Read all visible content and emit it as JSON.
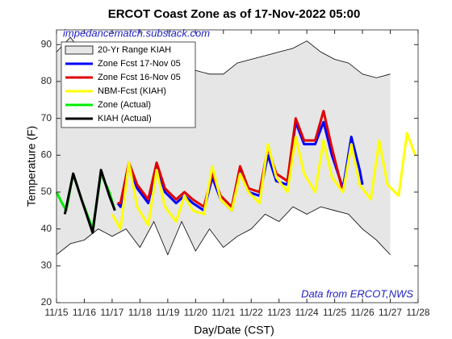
{
  "chart_data": {
    "type": "line",
    "title": "ERCOT Coast Zone as of 17-Nov-2022 05:00",
    "x_label": "Day/Date (CST)",
    "y_label": "Temperature (F)",
    "annotations": [
      "impedancematch.substack.com",
      "Data from ERCOT,NWS"
    ],
    "xlim": [
      15,
      28
    ],
    "ylim": [
      20,
      94
    ],
    "xticks": [
      {
        "value": 15,
        "label": "11/15"
      },
      {
        "value": 16,
        "label": "11/16"
      },
      {
        "value": 17,
        "label": "11/17"
      },
      {
        "value": 18,
        "label": "11/18"
      },
      {
        "value": 19,
        "label": "11/19"
      },
      {
        "value": 20,
        "label": "11/20"
      },
      {
        "value": 21,
        "label": "11/21"
      },
      {
        "value": 22,
        "label": "11/22"
      },
      {
        "value": 23,
        "label": "11/23"
      },
      {
        "value": 24,
        "label": "11/24"
      },
      {
        "value": 25,
        "label": "11/25"
      },
      {
        "value": 26,
        "label": "11/26"
      },
      {
        "value": 27,
        "label": "11/27"
      },
      {
        "value": 28,
        "label": "11/28"
      }
    ],
    "yticks": [
      20,
      30,
      40,
      50,
      60,
      70,
      80,
      90
    ],
    "grid": false,
    "legend": "top-left",
    "band": {
      "name": "20-Yr Range KIAH",
      "color": "#e6e6e6",
      "x": [
        15,
        15.5,
        16,
        16.5,
        17,
        17.5,
        18,
        18.5,
        19,
        19.5,
        20,
        20.5,
        21,
        21.5,
        22,
        22.5,
        23,
        23.5,
        24,
        24.5,
        25,
        25.5,
        26,
        26.5,
        27
      ],
      "upper": [
        88,
        92,
        87,
        86,
        86,
        86,
        84,
        83,
        82,
        84,
        83,
        82,
        82,
        85,
        86,
        87,
        88,
        89,
        91,
        88,
        86,
        85,
        82,
        81,
        82
      ],
      "lower": [
        33,
        36,
        37,
        40,
        38,
        40,
        35,
        42,
        33,
        42,
        34,
        40,
        35,
        38,
        40,
        44,
        42,
        46,
        44,
        46,
        45,
        44,
        40,
        37,
        33
      ]
    },
    "series": [
      {
        "name": "Zone Fcst 17-Nov 05",
        "color": "#0000ff",
        "x": [
          17.2,
          17.3,
          17.6,
          17.9,
          18.3,
          18.6,
          18.9,
          19.3,
          19.6,
          19.9,
          20.3,
          20.6,
          20.9,
          21.3,
          21.6,
          21.9,
          22.3,
          22.6,
          22.9,
          23.3,
          23.6,
          23.9,
          24.3,
          24.6,
          24.9,
          25.3,
          25.6,
          25.9,
          26.0
        ],
        "values": [
          47,
          46,
          57,
          51,
          47,
          57,
          50,
          47,
          49,
          47,
          45,
          54,
          48,
          45,
          56,
          50,
          49,
          60,
          53,
          52,
          69,
          63,
          63,
          69,
          60,
          51,
          65,
          56,
          52
        ]
      },
      {
        "name": "Zone Fcst 16-Nov 05",
        "color": "#e00000",
        "x": [
          17.2,
          17.3,
          17.6,
          17.9,
          18.3,
          18.6,
          18.9,
          19.3,
          19.6,
          19.9,
          20.3,
          20.6,
          20.9,
          21.3,
          21.6,
          21.9,
          22.3,
          22.6,
          22.9,
          23.3,
          23.6,
          23.9,
          24.3,
          24.6,
          24.9,
          25.3
        ],
        "values": [
          47,
          47,
          58,
          52,
          48,
          58,
          51,
          48,
          50,
          48,
          46,
          55,
          49,
          46,
          57,
          51,
          50,
          62,
          55,
          53,
          70,
          64,
          64,
          72,
          62,
          50
        ]
      },
      {
        "name": "NBM-Fcst (KIAH)",
        "color": "#ffff00",
        "x": [
          17.0,
          17.3,
          17.6,
          17.9,
          18.3,
          18.6,
          18.9,
          19.3,
          19.6,
          19.9,
          20.3,
          20.6,
          20.9,
          21.3,
          21.6,
          21.9,
          22.3,
          22.6,
          22.9,
          23.3,
          23.6,
          23.9,
          24.3,
          24.6,
          24.9,
          25.3,
          25.6,
          25.9,
          26.3,
          26.6,
          26.9,
          27.3,
          27.6,
          27.9
        ],
        "values": [
          44,
          40,
          58,
          46,
          41,
          56,
          46,
          42,
          49,
          45,
          44,
          57,
          48,
          45,
          55,
          50,
          47,
          63,
          54,
          50,
          65,
          55,
          50,
          64,
          54,
          50,
          63,
          52,
          48,
          64,
          52,
          49,
          66,
          60
        ]
      },
      {
        "name": "Zone (Actual)",
        "color": "#00ee00",
        "x": [
          15.0,
          15.2,
          15.35,
          15.6,
          15.9,
          16.3,
          16.6,
          16.9,
          17.1
        ],
        "values": [
          50,
          47,
          45,
          55,
          48,
          40,
          55,
          50,
          45
        ]
      },
      {
        "name": "KIAH (Actual)",
        "color": "#000000",
        "x": [
          15.3,
          15.6,
          15.9,
          16.3,
          16.6,
          16.9,
          17.1
        ],
        "values": [
          44,
          55,
          48,
          39,
          56,
          49,
          45
        ]
      }
    ]
  }
}
